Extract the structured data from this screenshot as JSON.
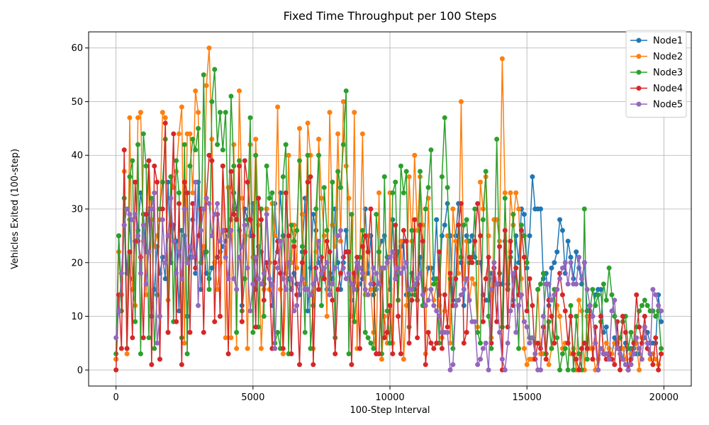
{
  "chart_data": {
    "type": "line",
    "title": "Fixed Time Throughput per 100 Steps",
    "xlabel": "100-Step Interval",
    "ylabel": "Vehicles Exited (100-step)",
    "xlim": [
      -1000,
      21000
    ],
    "ylim": [
      -3,
      63
    ],
    "xticks": [
      0,
      5000,
      10000,
      15000,
      20000
    ],
    "yticks": [
      0,
      10,
      20,
      30,
      40,
      50,
      60
    ],
    "x": {
      "start": 0,
      "step": 100,
      "count": 200
    },
    "grid": true,
    "legend_position": "upper right",
    "series": [
      {
        "name": "Node1",
        "color": "#1f77b4",
        "values": [
          2,
          25,
          14,
          27,
          18,
          28,
          17,
          24,
          26,
          33,
          29,
          22,
          30,
          10,
          15,
          23,
          18,
          21,
          17,
          35,
          20,
          27,
          24,
          11,
          26,
          25,
          10,
          21,
          28,
          18,
          35,
          15,
          23,
          18,
          17,
          19,
          20,
          21,
          22,
          23,
          24,
          25,
          28,
          33,
          30,
          26,
          12,
          30,
          28,
          25,
          31,
          15,
          23,
          22,
          16,
          30,
          20,
          12,
          31,
          22,
          33,
          25,
          18,
          17,
          15,
          18,
          16,
          14,
          22,
          32,
          11,
          19,
          29,
          26,
          20,
          18,
          17,
          15,
          18,
          17,
          30,
          20,
          15,
          20,
          26,
          18,
          13,
          18,
          15,
          16,
          17,
          30,
          18,
          25,
          14,
          15,
          22,
          24,
          25,
          21,
          15,
          28,
          17,
          22,
          23,
          24,
          14,
          14,
          18,
          15,
          16,
          21,
          12,
          15,
          19,
          19,
          17,
          28,
          14,
          25,
          27,
          31,
          25,
          13,
          25,
          31,
          20,
          12,
          25,
          24,
          25,
          21,
          20,
          20,
          14,
          13,
          13,
          18,
          17,
          16,
          16,
          16,
          24,
          16,
          22,
          13,
          25,
          20,
          30,
          29,
          19,
          25,
          36,
          30,
          30,
          30,
          17,
          18,
          12,
          19,
          20,
          22,
          28,
          26,
          18,
          24,
          21,
          17,
          22,
          19,
          16,
          20,
          11,
          12,
          10,
          14,
          15,
          15,
          7,
          8,
          2,
          3,
          6,
          4,
          4,
          2,
          5,
          0,
          4,
          3,
          3,
          3,
          6,
          6,
          7,
          5,
          5,
          5,
          14,
          9
        ]
      },
      {
        "name": "Node2",
        "color": "#ff7f0e",
        "values": [
          2,
          22,
          14,
          37,
          3,
          47,
          15,
          12,
          47,
          48,
          24,
          14,
          39,
          28,
          23,
          25,
          28,
          48,
          47,
          13,
          36,
          34,
          37,
          44,
          49,
          5,
          44,
          44,
          33,
          52,
          48,
          20,
          23,
          53,
          60,
          43,
          20,
          15,
          20,
          38,
          6,
          34,
          6,
          42,
          4,
          52,
          32,
          25,
          4,
          42,
          21,
          43,
          27,
          4,
          15,
          30,
          15,
          31,
          25,
          49,
          15,
          3,
          15,
          40,
          20,
          27,
          19,
          45,
          29,
          16,
          46,
          40,
          4,
          22,
          43,
          32,
          25,
          10,
          48,
          27,
          23,
          44,
          24,
          50,
          38,
          32,
          10,
          48,
          4,
          21,
          44,
          14,
          25,
          15,
          7,
          3,
          33,
          2,
          10,
          5,
          33,
          5,
          22,
          13,
          24,
          2,
          12,
          36,
          24,
          40,
          26,
          36,
          27,
          3,
          32,
          15,
          13,
          16,
          12,
          6,
          11,
          25,
          5,
          30,
          24,
          18,
          50,
          17,
          24,
          13,
          17,
          16,
          8,
          35,
          30,
          36,
          25,
          6,
          28,
          28,
          24,
          58,
          33,
          15,
          33,
          27,
          33,
          30,
          17,
          4,
          1,
          2,
          2,
          3,
          15,
          3,
          3,
          3,
          1,
          4,
          5,
          12,
          10,
          4,
          5,
          5,
          3,
          4,
          0,
          13,
          11,
          0,
          10,
          4,
          4,
          0,
          2,
          10,
          3,
          5,
          4,
          3,
          5,
          4,
          6,
          4,
          2,
          4,
          3,
          4,
          5,
          0,
          6,
          8,
          4,
          2,
          3,
          2,
          1,
          3
        ]
      },
      {
        "name": "Node3",
        "color": "#2ca02c",
        "values": [
          3,
          25,
          11,
          32,
          4,
          36,
          39,
          9,
          42,
          3,
          44,
          38,
          6,
          32,
          4,
          14,
          30,
          35,
          43,
          7,
          36,
          9,
          39,
          33,
          6,
          42,
          3,
          38,
          43,
          41,
          45,
          20,
          55,
          22,
          15,
          50,
          56,
          42,
          48,
          41,
          48,
          26,
          51,
          38,
          7,
          39,
          11,
          17,
          28,
          47,
          7,
          40,
          8,
          30,
          10,
          38,
          32,
          33,
          5,
          7,
          4,
          36,
          42,
          3,
          27,
          24,
          26,
          39,
          23,
          7,
          40,
          4,
          12,
          30,
          40,
          12,
          34,
          26,
          14,
          35,
          6,
          37,
          34,
          42,
          52,
          3,
          29,
          9,
          15,
          21,
          26,
          7,
          6,
          5,
          4,
          29,
          22,
          3,
          36,
          11,
          5,
          33,
          35,
          13,
          38,
          33,
          37,
          8,
          26,
          14,
          13,
          37,
          12,
          30,
          34,
          41,
          16,
          17,
          5,
          36,
          47,
          34,
          17,
          4,
          12,
          27,
          21,
          27,
          28,
          20,
          21,
          30,
          7,
          5,
          28,
          37,
          10,
          4,
          17,
          43,
          18,
          8,
          32,
          15,
          21,
          29,
          19,
          4,
          27,
          25,
          20,
          6,
          6,
          5,
          15,
          16,
          18,
          3,
          9,
          4,
          15,
          6,
          0,
          3,
          4,
          0,
          12,
          0,
          10,
          3,
          0,
          30,
          2,
          11,
          15,
          12,
          14,
          9,
          16,
          13,
          19,
          14,
          10,
          5,
          6,
          9,
          10,
          4,
          7,
          4,
          8,
          11,
          12,
          13,
          12,
          11,
          11,
          10,
          11,
          4
        ]
      },
      {
        "name": "Node4",
        "color": "#d62728",
        "values": [
          0,
          14,
          4,
          41,
          4,
          22,
          6,
          35,
          24,
          21,
          6,
          29,
          39,
          1,
          38,
          35,
          2,
          30,
          46,
          7,
          27,
          44,
          9,
          31,
          1,
          35,
          33,
          7,
          31,
          19,
          25,
          30,
          7,
          32,
          40,
          39,
          9,
          29,
          10,
          38,
          26,
          3,
          37,
          29,
          28,
          38,
          9,
          39,
          35,
          28,
          25,
          8,
          32,
          28,
          13,
          20,
          17,
          4,
          20,
          24,
          18,
          4,
          33,
          25,
          3,
          23,
          14,
          1,
          20,
          22,
          35,
          36,
          1,
          19,
          15,
          21,
          17,
          24,
          22,
          13,
          3,
          15,
          18,
          21,
          22,
          22,
          1,
          18,
          21,
          4,
          23,
          25,
          22,
          30,
          16,
          3,
          3,
          19,
          6,
          7,
          12,
          3,
          27,
          10,
          3,
          26,
          24,
          5,
          13,
          28,
          6,
          27,
          24,
          1,
          7,
          5,
          4,
          5,
          22,
          4,
          14,
          8,
          18,
          12,
          17,
          27,
          31,
          5,
          7,
          21,
          20,
          24,
          31,
          25,
          9,
          17,
          21,
          5,
          19,
          9,
          23,
          0,
          26,
          8,
          24,
          12,
          19,
          14,
          26,
          21,
          11,
          17,
          12,
          2,
          5,
          4,
          8,
          2,
          13,
          10,
          5,
          15,
          18,
          14,
          11,
          5,
          10,
          3,
          2,
          0,
          4,
          5,
          4,
          12,
          2,
          8,
          0,
          10,
          3,
          2,
          3,
          2,
          1,
          9,
          0,
          10,
          7,
          0,
          2,
          5,
          14,
          8,
          5,
          10,
          4,
          3,
          1,
          6,
          0,
          3
        ]
      },
      {
        "name": "Node5",
        "color": "#9467bd",
        "values": [
          6,
          11,
          18,
          27,
          30,
          29,
          28,
          29,
          25,
          18,
          27,
          16,
          22,
          30,
          33,
          5,
          10,
          28,
          20,
          25,
          32,
          24,
          18,
          22,
          17,
          30,
          20,
          23,
          21,
          35,
          12,
          26,
          30,
          32,
          31,
          25,
          29,
          31,
          24,
          26,
          21,
          17,
          26,
          17,
          15,
          21,
          23,
          27,
          19,
          11,
          16,
          21,
          17,
          16,
          18,
          29,
          17,
          16,
          4,
          19,
          24,
          17,
          15,
          20,
          17,
          11,
          12,
          16,
          17,
          15,
          15,
          14,
          16,
          17,
          24,
          18,
          19,
          20,
          14,
          16,
          19,
          25,
          26,
          19,
          17,
          18,
          16,
          15,
          20,
          19,
          18,
          15,
          14,
          16,
          19,
          18,
          16,
          19,
          19,
          20,
          21,
          22,
          17,
          19,
          18,
          19,
          20,
          15,
          15,
          16,
          17,
          18,
          14,
          12,
          13,
          15,
          12,
          11,
          10,
          7,
          7,
          7,
          0,
          1,
          12,
          13,
          14,
          15,
          17,
          13,
          9,
          9,
          1,
          2,
          4,
          5,
          0,
          15,
          20,
          16,
          7,
          2,
          0,
          5,
          11,
          18,
          7,
          12,
          14,
          9,
          8,
          5,
          6,
          3,
          0,
          0,
          10,
          16,
          16,
          13,
          14,
          15,
          17,
          19,
          20,
          16,
          20,
          16,
          16,
          21,
          17,
          20,
          15,
          12,
          10,
          5,
          0,
          4,
          3,
          3,
          2,
          11,
          13,
          4,
          3,
          2,
          1,
          0,
          1,
          3,
          6,
          4,
          2,
          8,
          5,
          3,
          15,
          14,
          12,
          11
        ]
      }
    ]
  }
}
